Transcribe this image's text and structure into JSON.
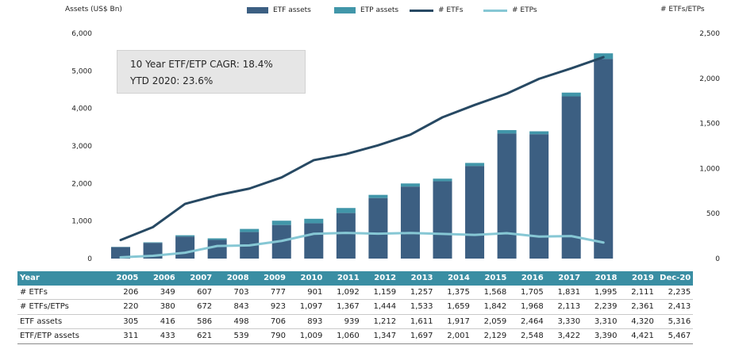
{
  "legend": {
    "etf_assets": "ETF assets",
    "etp_assets": "ETP assets",
    "num_etfs": "# ETFs",
    "num_etps": "# ETPs"
  },
  "annotation": {
    "line1": "10 Year ETF/ETP CAGR: 18.4%",
    "line2": "YTD 2020: 23.6%"
  },
  "colors": {
    "etf_bar": "#3c5f82",
    "etp_bar": "#4196a9",
    "etf_line": "#274963",
    "etp_line": "#86c7d4",
    "table_header": "#3a8ea3"
  },
  "chart_data": {
    "type": "bar",
    "ylabel": "Assets (US$ Bn)",
    "y2label": "# ETFs/ETPs",
    "ylim": [
      0,
      6000
    ],
    "y2lim": [
      0,
      2500
    ],
    "y_ticks": [
      "0",
      "1,000",
      "2,000",
      "3,000",
      "4,000",
      "5,000",
      "6,000"
    ],
    "y2_ticks": [
      "0",
      "500",
      "1,000",
      "1,500",
      "2,000",
      "2,500"
    ],
    "grid": false,
    "legend_position": "top",
    "categories": [
      "2005",
      "2006",
      "2007",
      "2008",
      "2009",
      "2010",
      "2011",
      "2012",
      "2013",
      "2014",
      "2015",
      "2016",
      "2017",
      "2018",
      "2019",
      "Dec-20"
    ],
    "series": [
      {
        "name": "ETF assets",
        "kind": "bar",
        "axis": "left",
        "values": [
          305,
          416,
          586,
          498,
          706,
          893,
          939,
          1212,
          1611,
          1917,
          2059,
          2464,
          3330,
          3310,
          4320,
          5316
        ]
      },
      {
        "name": "ETP assets",
        "kind": "bar-stack-total",
        "axis": "left",
        "values": [
          311,
          433,
          621,
          539,
          790,
          1009,
          1060,
          1347,
          1697,
          2001,
          2129,
          2548,
          3422,
          3390,
          4421,
          5467
        ]
      },
      {
        "name": "# ETFs",
        "kind": "line",
        "axis": "right",
        "values": [
          206,
          349,
          607,
          703,
          777,
          901,
          1092,
          1159,
          1257,
          1375,
          1568,
          1705,
          1831,
          1995,
          2111,
          2235
        ]
      },
      {
        "name": "# ETPs",
        "kind": "line",
        "axis": "right",
        "values": [
          14,
          31,
          65,
          140,
          146,
          196,
          275,
          285,
          276,
          284,
          274,
          263,
          282,
          244,
          250,
          178
        ]
      }
    ]
  },
  "table": {
    "header_label": "Year",
    "years": [
      "2005",
      "2006",
      "2007",
      "2008",
      "2009",
      "2010",
      "2011",
      "2012",
      "2013",
      "2014",
      "2015",
      "2016",
      "2017",
      "2018",
      "2019",
      "Dec-20"
    ],
    "rows": [
      {
        "label": "# ETFs",
        "values": [
          "206",
          "349",
          "607",
          "703",
          "777",
          "901",
          "1,092",
          "1,159",
          "1,257",
          "1,375",
          "1,568",
          "1,705",
          "1,831",
          "1,995",
          "2,111",
          "2,235"
        ]
      },
      {
        "label": "# ETFs/ETPs",
        "values": [
          "220",
          "380",
          "672",
          "843",
          "923",
          "1,097",
          "1,367",
          "1,444",
          "1,533",
          "1,659",
          "1,842",
          "1,968",
          "2,113",
          "2,239",
          "2,361",
          "2,413"
        ]
      },
      {
        "label": "ETF assets",
        "values": [
          "305",
          "416",
          "586",
          "498",
          "706",
          "893",
          "939",
          "1,212",
          "1,611",
          "1,917",
          "2,059",
          "2,464",
          "3,330",
          "3,310",
          "4,320",
          "5,316"
        ]
      },
      {
        "label": "ETF/ETP assets",
        "values": [
          "311",
          "433",
          "621",
          "539",
          "790",
          "1,009",
          "1,060",
          "1,347",
          "1,697",
          "2,001",
          "2,129",
          "2,548",
          "3,422",
          "3,390",
          "4,421",
          "5,467"
        ]
      }
    ]
  }
}
